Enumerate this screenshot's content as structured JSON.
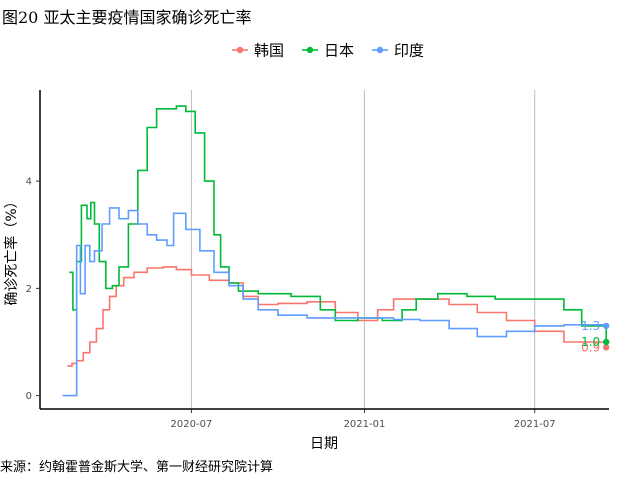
{
  "figure": {
    "title": "图20 亚太主要疫情国家确诊死亡率",
    "source": "来源：约翰霍普金斯大学、第一财经研究院计算"
  },
  "chart_data": {
    "type": "line",
    "xlabel": "日期",
    "ylabel": "确诊死亡率（%）",
    "x_ticks": [
      "2020-07",
      "2021-01",
      "2021-07"
    ],
    "y_ticks": [
      0,
      2,
      4
    ],
    "xlim": [
      "2020-01-22",
      "2021-09-18"
    ],
    "ylim": [
      -0.25,
      5.7
    ],
    "grid": "vertical major lines only",
    "legend_position": "top",
    "series": [
      {
        "name": "韩国",
        "color": "#F8766D",
        "end_label": "0.9",
        "points": [
          [
            "2020-02-20",
            0.55
          ],
          [
            "2020-02-25",
            0.6
          ],
          [
            "2020-03-01",
            0.65
          ],
          [
            "2020-03-08",
            0.8
          ],
          [
            "2020-03-15",
            1.0
          ],
          [
            "2020-03-22",
            1.25
          ],
          [
            "2020-03-29",
            1.6
          ],
          [
            "2020-04-05",
            1.85
          ],
          [
            "2020-04-12",
            2.05
          ],
          [
            "2020-04-20",
            2.2
          ],
          [
            "2020-05-01",
            2.3
          ],
          [
            "2020-05-15",
            2.38
          ],
          [
            "2020-06-01",
            2.4
          ],
          [
            "2020-06-15",
            2.35
          ],
          [
            "2020-07-01",
            2.25
          ],
          [
            "2020-07-20",
            2.15
          ],
          [
            "2020-08-10",
            2.1
          ],
          [
            "2020-08-25",
            1.85
          ],
          [
            "2020-09-10",
            1.7
          ],
          [
            "2020-10-01",
            1.72
          ],
          [
            "2020-11-01",
            1.75
          ],
          [
            "2020-12-01",
            1.55
          ],
          [
            "2020-12-25",
            1.4
          ],
          [
            "2021-01-15",
            1.6
          ],
          [
            "2021-02-01",
            1.8
          ],
          [
            "2021-03-01",
            1.8
          ],
          [
            "2021-04-01",
            1.7
          ],
          [
            "2021-05-01",
            1.55
          ],
          [
            "2021-06-01",
            1.4
          ],
          [
            "2021-07-01",
            1.2
          ],
          [
            "2021-08-01",
            1.0
          ],
          [
            "2021-09-15",
            0.9
          ]
        ]
      },
      {
        "name": "日本",
        "color": "#00BA38",
        "end_label": "1.0",
        "points": [
          [
            "2020-02-22",
            2.3
          ],
          [
            "2020-02-26",
            1.6
          ],
          [
            "2020-03-01",
            2.5
          ],
          [
            "2020-03-06",
            3.55
          ],
          [
            "2020-03-12",
            3.3
          ],
          [
            "2020-03-16",
            3.6
          ],
          [
            "2020-03-20",
            3.2
          ],
          [
            "2020-03-25",
            2.5
          ],
          [
            "2020-04-01",
            2.0
          ],
          [
            "2020-04-08",
            2.05
          ],
          [
            "2020-04-15",
            2.4
          ],
          [
            "2020-04-25",
            3.2
          ],
          [
            "2020-05-05",
            4.2
          ],
          [
            "2020-05-15",
            5.0
          ],
          [
            "2020-05-25",
            5.35
          ],
          [
            "2020-06-15",
            5.4
          ],
          [
            "2020-06-25",
            5.3
          ],
          [
            "2020-07-05",
            4.9
          ],
          [
            "2020-07-15",
            4.0
          ],
          [
            "2020-07-25",
            3.0
          ],
          [
            "2020-08-01",
            2.4
          ],
          [
            "2020-08-10",
            2.1
          ],
          [
            "2020-08-20",
            1.95
          ],
          [
            "2020-09-10",
            1.9
          ],
          [
            "2020-10-15",
            1.85
          ],
          [
            "2020-11-15",
            1.6
          ],
          [
            "2020-12-01",
            1.4
          ],
          [
            "2020-12-25",
            1.45
          ],
          [
            "2021-01-20",
            1.4
          ],
          [
            "2021-02-10",
            1.6
          ],
          [
            "2021-02-25",
            1.8
          ],
          [
            "2021-03-20",
            1.9
          ],
          [
            "2021-04-20",
            1.85
          ],
          [
            "2021-05-20",
            1.8
          ],
          [
            "2021-06-15",
            1.8
          ],
          [
            "2021-07-15",
            1.8
          ],
          [
            "2021-08-01",
            1.6
          ],
          [
            "2021-08-20",
            1.3
          ],
          [
            "2021-09-15",
            1.0
          ]
        ]
      },
      {
        "name": "印度",
        "color": "#619CFF",
        "end_label": "1.3",
        "points": [
          [
            "2020-02-15",
            0.0
          ],
          [
            "2020-02-25",
            0.0
          ],
          [
            "2020-03-01",
            2.8
          ],
          [
            "2020-03-05",
            1.9
          ],
          [
            "2020-03-10",
            2.8
          ],
          [
            "2020-03-15",
            2.5
          ],
          [
            "2020-03-20",
            2.7
          ],
          [
            "2020-03-28",
            3.2
          ],
          [
            "2020-04-05",
            3.5
          ],
          [
            "2020-04-15",
            3.3
          ],
          [
            "2020-04-25",
            3.45
          ],
          [
            "2020-05-05",
            3.2
          ],
          [
            "2020-05-15",
            3.0
          ],
          [
            "2020-05-25",
            2.9
          ],
          [
            "2020-06-05",
            2.8
          ],
          [
            "2020-06-12",
            3.4
          ],
          [
            "2020-06-25",
            3.1
          ],
          [
            "2020-07-10",
            2.7
          ],
          [
            "2020-07-25",
            2.3
          ],
          [
            "2020-08-10",
            2.05
          ],
          [
            "2020-08-25",
            1.8
          ],
          [
            "2020-09-10",
            1.6
          ],
          [
            "2020-10-01",
            1.5
          ],
          [
            "2020-11-01",
            1.45
          ],
          [
            "2020-12-01",
            1.45
          ],
          [
            "2021-01-01",
            1.45
          ],
          [
            "2021-02-01",
            1.42
          ],
          [
            "2021-03-01",
            1.4
          ],
          [
            "2021-04-01",
            1.25
          ],
          [
            "2021-05-01",
            1.1
          ],
          [
            "2021-06-01",
            1.2
          ],
          [
            "2021-07-01",
            1.3
          ],
          [
            "2021-08-01",
            1.32
          ],
          [
            "2021-09-15",
            1.3
          ]
        ]
      }
    ]
  }
}
